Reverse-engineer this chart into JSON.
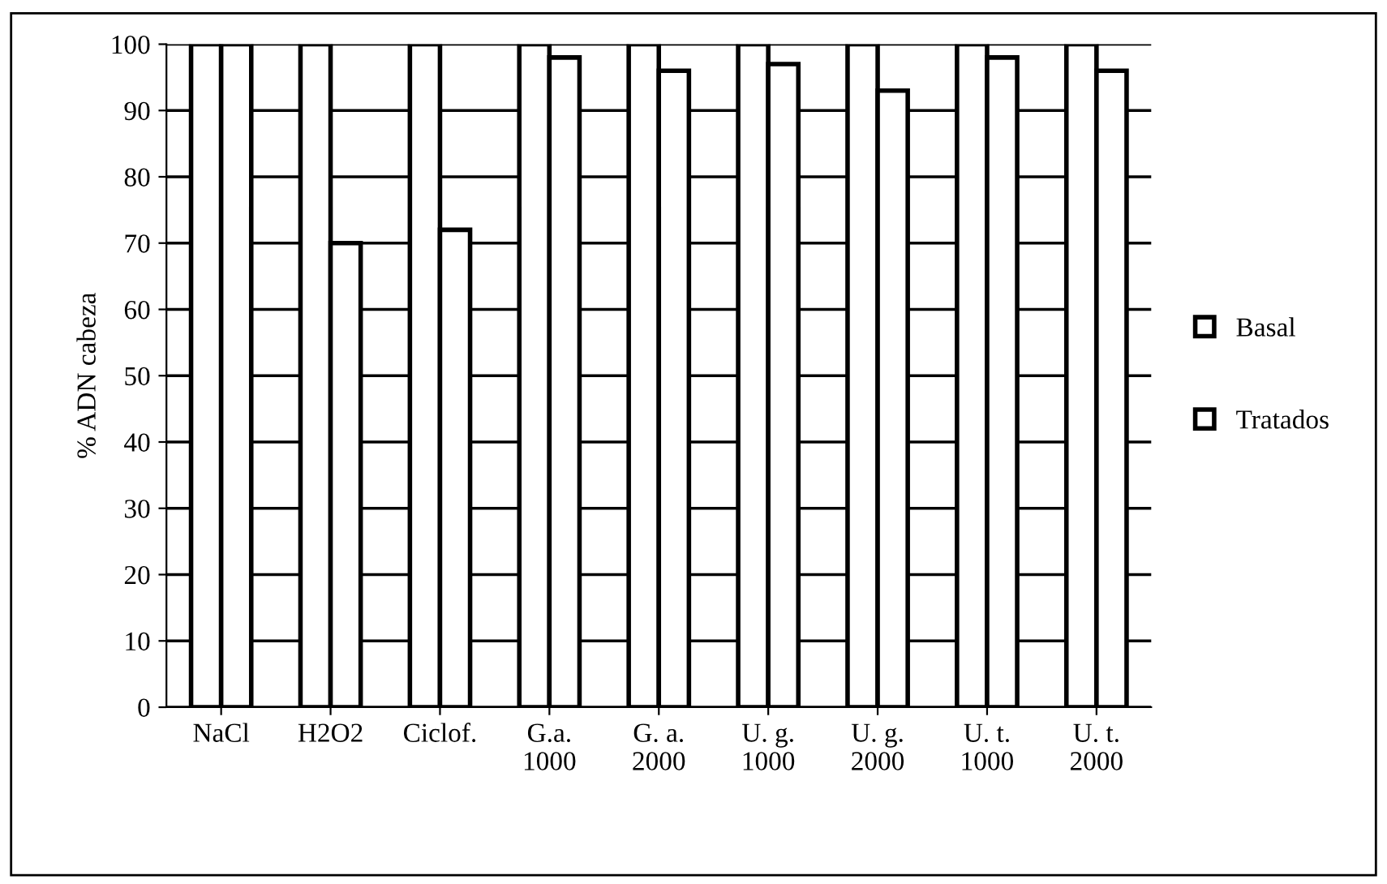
{
  "chart_data": {
    "type": "bar",
    "ylabel": "% ADN cabeza",
    "categories": [
      "NaCl",
      "H2O2",
      "Ciclof.",
      "G.a.\n1000",
      "G. a.\n2000",
      "U. g.\n1000",
      "U. g.\n2000",
      "U. t.\n1000",
      "U. t.\n2000"
    ],
    "series": [
      {
        "name": "Basal",
        "color": "#ffffff",
        "values": [
          100,
          100,
          100,
          100,
          100,
          100,
          100,
          100,
          100
        ]
      },
      {
        "name": "Tratados",
        "color": "#ffffff",
        "values": [
          100,
          70,
          72,
          98,
          96,
          97,
          93,
          98,
          96
        ]
      }
    ],
    "ylim": [
      0,
      100
    ],
    "yticks": [
      0,
      10,
      20,
      30,
      40,
      50,
      60,
      70,
      80,
      90,
      100
    ],
    "grid": "y",
    "legend": "right"
  }
}
